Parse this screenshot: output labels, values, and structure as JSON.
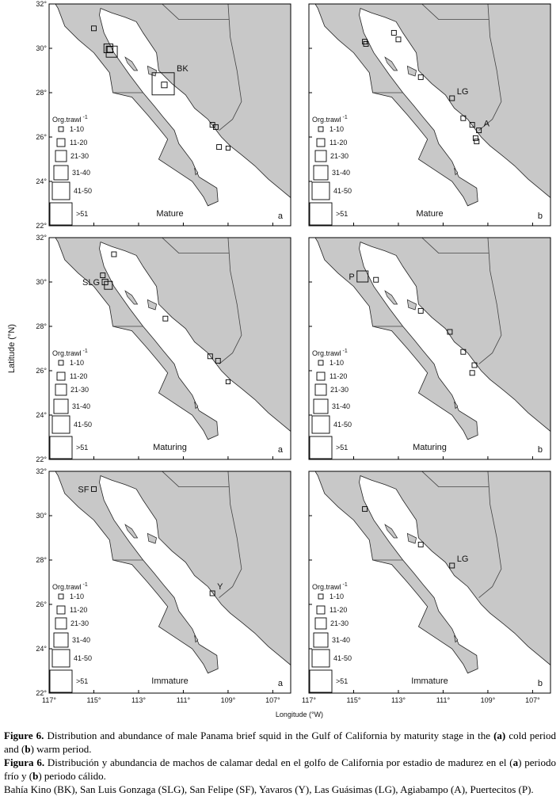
{
  "axes": {
    "ylabel": "Latitude (°N)",
    "xlabel": "Longitude (°W)",
    "xlim": [
      117,
      106.2
    ],
    "ylim": [
      22,
      32
    ],
    "xticks": [
      {
        "value": 117,
        "label": "117°"
      },
      {
        "value": 115,
        "label": "115°"
      },
      {
        "value": 113,
        "label": "113°"
      },
      {
        "value": 111,
        "label": "111°"
      },
      {
        "value": 109,
        "label": "109°"
      },
      {
        "value": 107,
        "label": "107°"
      }
    ],
    "yticks": [
      {
        "value": 22,
        "label": "22°"
      },
      {
        "value": 24,
        "label": "24°"
      },
      {
        "value": 26,
        "label": "26°"
      },
      {
        "value": 28,
        "label": "28°"
      },
      {
        "value": 30,
        "label": "30°"
      },
      {
        "value": 32,
        "label": "32°"
      }
    ]
  },
  "legend": {
    "title": "Org.trawl",
    "title_sup": "-1",
    "labels": [
      "1-10",
      "11-20",
      "21-30",
      "31-40",
      "41-50",
      ">51"
    ]
  },
  "panels": [
    {
      "stage": "Mature",
      "letter": "a",
      "points": [
        {
          "lon": 115.0,
          "lat": 30.9,
          "n": 5
        },
        {
          "lon": 114.35,
          "lat": 30.0,
          "n": 18
        },
        {
          "lon": 114.2,
          "lat": 29.85,
          "n": 25
        },
        {
          "lon": 114.28,
          "lat": 29.95,
          "n": 8
        },
        {
          "lon": 111.9,
          "lat": 28.4,
          "n": 60,
          "label": "BK"
        },
        {
          "lon": 111.85,
          "lat": 28.35,
          "n": 8
        },
        {
          "lon": 109.7,
          "lat": 26.55,
          "n": 5
        },
        {
          "lon": 109.55,
          "lat": 26.45,
          "n": 5
        },
        {
          "lon": 109.4,
          "lat": 25.55,
          "n": 5
        },
        {
          "lon": 109.0,
          "lat": 25.5,
          "n": 3
        }
      ]
    },
    {
      "stage": "Mature",
      "letter": "b",
      "points": [
        {
          "lon": 114.5,
          "lat": 30.3,
          "n": 5
        },
        {
          "lon": 114.45,
          "lat": 30.2,
          "n": 5
        },
        {
          "lon": 113.2,
          "lat": 30.7,
          "n": 5
        },
        {
          "lon": 113.0,
          "lat": 30.4,
          "n": 5
        },
        {
          "lon": 112.0,
          "lat": 28.7,
          "n": 5
        },
        {
          "lon": 110.6,
          "lat": 27.75,
          "n": 5,
          "label": "LG"
        },
        {
          "lon": 110.1,
          "lat": 26.85,
          "n": 5
        },
        {
          "lon": 109.7,
          "lat": 26.55,
          "n": 5
        },
        {
          "lon": 109.4,
          "lat": 26.3,
          "n": 5,
          "label": "A"
        },
        {
          "lon": 109.55,
          "lat": 25.95,
          "n": 5
        },
        {
          "lon": 109.5,
          "lat": 25.8,
          "n": 5
        }
      ]
    },
    {
      "stage": "Maturing",
      "letter": "a",
      "points": [
        {
          "lon": 114.1,
          "lat": 31.25,
          "n": 5
        },
        {
          "lon": 114.6,
          "lat": 30.3,
          "n": 5
        },
        {
          "lon": 114.5,
          "lat": 30.0,
          "n": 8,
          "label": "SLG"
        },
        {
          "lon": 114.35,
          "lat": 29.85,
          "n": 15
        },
        {
          "lon": 111.8,
          "lat": 28.35,
          "n": 5
        },
        {
          "lon": 109.8,
          "lat": 26.65,
          "n": 5
        },
        {
          "lon": 109.45,
          "lat": 26.45,
          "n": 5
        },
        {
          "lon": 109.0,
          "lat": 25.5,
          "n": 3
        }
      ]
    },
    {
      "stage": "Maturing",
      "letter": "b",
      "points": [
        {
          "lon": 114.6,
          "lat": 30.25,
          "n": 25,
          "label": "P"
        },
        {
          "lon": 114.0,
          "lat": 30.1,
          "n": 5
        },
        {
          "lon": 112.0,
          "lat": 28.7,
          "n": 5
        },
        {
          "lon": 110.7,
          "lat": 27.75,
          "n": 5
        },
        {
          "lon": 110.1,
          "lat": 26.85,
          "n": 5
        },
        {
          "lon": 109.6,
          "lat": 26.25,
          "n": 5
        },
        {
          "lon": 109.7,
          "lat": 25.9,
          "n": 5
        }
      ]
    },
    {
      "stage": "Immature",
      "letter": "a",
      "points": [
        {
          "lon": 115.0,
          "lat": 31.2,
          "n": 5,
          "label": "SF"
        },
        {
          "lon": 109.7,
          "lat": 26.5,
          "n": 5,
          "label": "Y"
        }
      ]
    },
    {
      "stage": "Immature",
      "letter": "b",
      "points": [
        {
          "lon": 114.5,
          "lat": 30.3,
          "n": 5
        },
        {
          "lon": 112.0,
          "lat": 28.7,
          "n": 5
        },
        {
          "lon": 110.6,
          "lat": 27.75,
          "n": 5,
          "label": "LG"
        }
      ]
    }
  ],
  "caption": [
    [
      {
        "text": "Figure 6.",
        "bold": true
      },
      {
        "text": " Distribution and abundance of male Panama brief squid in the Gulf of California by maturity stage in the ",
        "bold": false
      },
      {
        "text": "(a)",
        "bold": true
      },
      {
        "text": " cold period and (",
        "bold": false
      },
      {
        "text": "b",
        "bold": true
      },
      {
        "text": ") warm period.",
        "bold": false
      }
    ],
    [
      {
        "text": "Figura 6.",
        "bold": true
      },
      {
        "text": " Distribución y abundancia de machos de calamar dedal en el golfo de California por estadio de madurez en el (",
        "bold": false
      },
      {
        "text": "a",
        "bold": true
      },
      {
        "text": ") periodo frío y (",
        "bold": false
      },
      {
        "text": "b",
        "bold": true
      },
      {
        "text": ") periodo cálido.",
        "bold": false
      }
    ],
    [
      {
        "text": "Bahía Kino (BK), San Luis Gonzaga (SLG), San Felipe (SF), Yavaros (Y), Las Guásimas (LG), Agiabampo (A), Puertecitos (P).",
        "bold": false
      }
    ]
  ]
}
